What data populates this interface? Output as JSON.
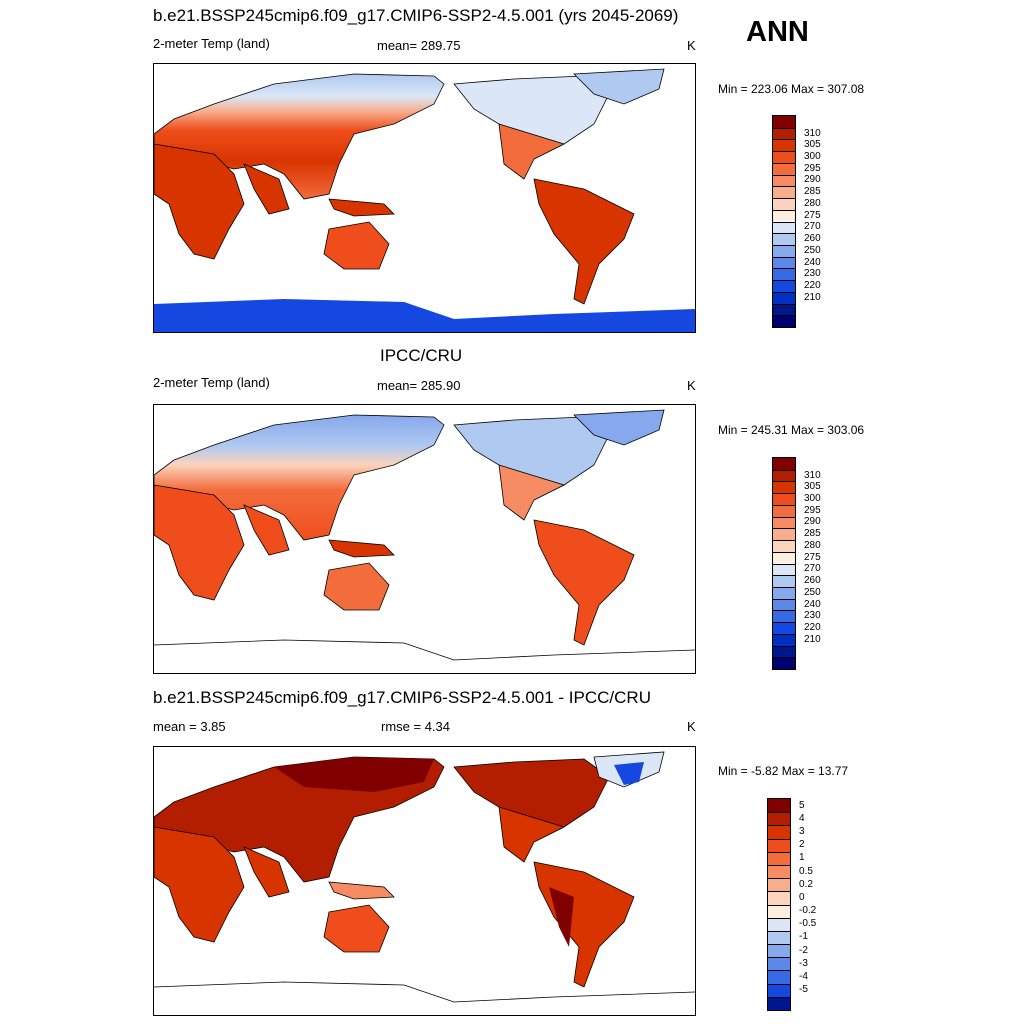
{
  "season": "ANN",
  "panels": [
    {
      "title": "b.e21.BSSP245cmip6.f09_g17.CMIP6-SSP2-4.5.001 (yrs 2045-2069)",
      "left_label": "2-meter Temp (land)",
      "mid_label": "mean= 289.75",
      "units": "K",
      "minmax": "Min = 223.06 Max = 307.08",
      "colorbar": {
        "labels": [
          "310",
          "305",
          "300",
          "295",
          "290",
          "285",
          "280",
          "275",
          "270",
          "260",
          "250",
          "240",
          "230",
          "220",
          "210"
        ],
        "colors": [
          "#800000",
          "#b41e00",
          "#d83400",
          "#ef4e1c",
          "#f36c3c",
          "#f68c64",
          "#f8ad8c",
          "#fcd3bc",
          "#fdeee0",
          "#dbe6f7",
          "#b0c9f0",
          "#86a8ec",
          "#5c88e8",
          "#3769e5",
          "#1448e0",
          "#0030c0",
          "#00168f",
          "#000070"
        ]
      }
    },
    {
      "title": "IPCC/CRU",
      "left_label": "2-meter Temp (land)",
      "mid_label": "mean= 285.90",
      "units": "K",
      "minmax": "Min = 245.31 Max = 303.06",
      "colorbar": {
        "labels": [
          "310",
          "305",
          "300",
          "295",
          "290",
          "285",
          "280",
          "275",
          "270",
          "260",
          "250",
          "240",
          "230",
          "220",
          "210"
        ],
        "colors": [
          "#800000",
          "#b41e00",
          "#d83400",
          "#ef4e1c",
          "#f36c3c",
          "#f68c64",
          "#f8ad8c",
          "#fcd3bc",
          "#fdeee0",
          "#dbe6f7",
          "#b0c9f0",
          "#86a8ec",
          "#5c88e8",
          "#3769e5",
          "#1448e0",
          "#0030c0",
          "#00168f",
          "#000070"
        ]
      }
    },
    {
      "title": "b.e21.BSSP245cmip6.f09_g17.CMIP6-SSP2-4.5.001 - IPCC/CRU",
      "left_label": "mean =   3.85",
      "mid_label": "rmse =   4.34",
      "units": "K",
      "minmax": "Min =  -5.82 Max =  13.77",
      "colorbar": {
        "labels": [
          "5",
          "4",
          "3",
          "2",
          "1",
          "0.5",
          "0.2",
          "0",
          "-0.2",
          "-0.5",
          "-1",
          "-2",
          "-3",
          "-4",
          "-5"
        ],
        "colors": [
          "#800000",
          "#b41e00",
          "#d83400",
          "#ef4e1c",
          "#f36c3c",
          "#f68c64",
          "#f8ad8c",
          "#fcd3bc",
          "#fdeee0",
          "#dbe6f7",
          "#b0c9f0",
          "#86a8ec",
          "#5c88e8",
          "#3769e5",
          "#1448e0",
          "#00168f"
        ]
      }
    }
  ]
}
